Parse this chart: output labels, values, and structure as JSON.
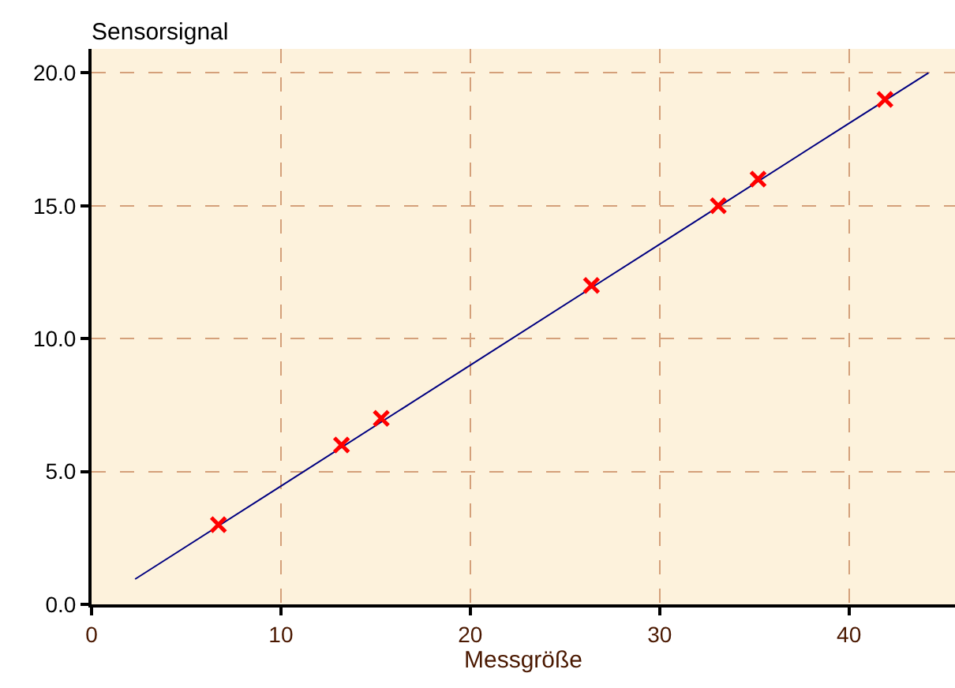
{
  "chart_data": {
    "type": "scatter",
    "xlabel": "Messgröße",
    "ylabel": "Sensorsignal",
    "xlim": [
      0,
      45.6
    ],
    "ylim": [
      0,
      20.9
    ],
    "xticks": [
      0,
      10,
      20,
      30,
      40
    ],
    "yticks": [
      {
        "value": 0,
        "label": "0.0"
      },
      {
        "value": 5,
        "label": "5.0"
      },
      {
        "value": 10,
        "label": "10.0"
      },
      {
        "value": 15,
        "label": "15.0"
      },
      {
        "value": 20,
        "label": "20.0"
      }
    ],
    "grid": true,
    "series": [
      {
        "type": "line",
        "color": "#000080",
        "marker": "none",
        "x": [
          2.3,
          10,
          20,
          30,
          40,
          44.2
        ],
        "values": [
          0.95,
          4.45,
          9.0,
          13.55,
          18.1,
          20.0
        ]
      },
      {
        "color": "#ff0000",
        "marker": "cross",
        "x": [
          6.7,
          13.2,
          15.3,
          26.4,
          33.1,
          35.2,
          41.9
        ],
        "values": [
          3,
          6,
          7,
          12,
          15,
          16,
          19
        ]
      }
    ]
  }
}
